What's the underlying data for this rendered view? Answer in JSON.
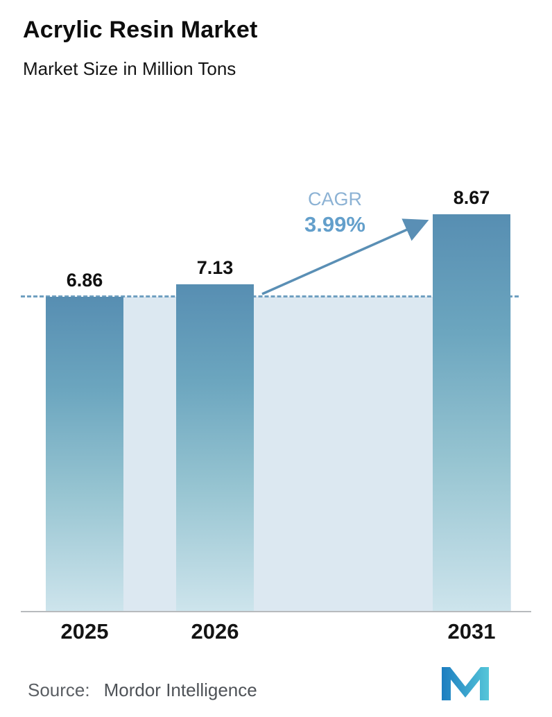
{
  "header": {
    "title": "Acrylic Resin Market",
    "subtitle": "Market Size in Million Tons"
  },
  "chart_data": {
    "type": "bar",
    "title": "Acrylic Resin Market",
    "subtitle": "Market Size in Million Tons",
    "unit": "Million Tons",
    "categories": [
      "2025",
      "2026",
      "2031"
    ],
    "values": [
      6.86,
      7.13,
      8.67
    ],
    "value_labels": [
      "6.86",
      "7.13",
      "8.67"
    ],
    "cagr": {
      "label": "CAGR",
      "value": "3.99%"
    },
    "dashed_reference_value": 6.86,
    "ylim": [
      0,
      9
    ],
    "grid": false,
    "legend": false,
    "colors": {
      "bar_gradient_top": "#578eb2",
      "bar_gradient_bottom": "#cde4ec",
      "band": "#dce8f1",
      "dashed_line": "#6f9fc0",
      "cagr_label": "#8cb2d4",
      "cagr_value": "#639fcb",
      "arrow": "#5a8fb5",
      "axis_line": "#b7babd",
      "text": "#111111"
    }
  },
  "footer": {
    "source_label": "Source:",
    "source_name": "Mordor Intelligence",
    "logo": "mordor-intelligence-logo"
  }
}
